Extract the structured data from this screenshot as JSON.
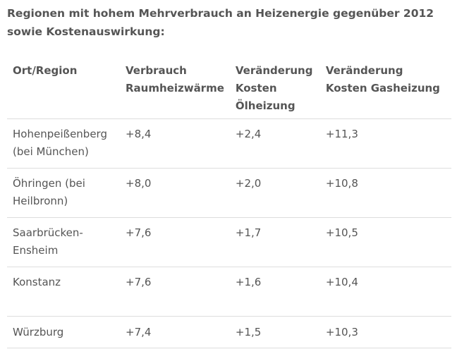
{
  "caption": "Regionen mit hohem Mehrverbrauch an Heizenergie gegenüber 2012 sowie Kostenauswirkung:",
  "table": {
    "headers": [
      "Ort/Region",
      "Verbrauch Raumheizwärme",
      "Veränderung Kosten Ölheizung",
      "Veränderung Kosten Gasheizung"
    ],
    "rows": [
      [
        "Hohenpeißenberg (bei München)",
        "+8,4",
        "+2,4",
        "+11,3"
      ],
      [
        "Öhringen (bei Heilbronn)",
        "+8,0",
        "+2,0",
        "+10,8"
      ],
      [
        "Saarbrücken-Ensheim",
        "+7,6",
        "+1,7",
        "+10,5"
      ],
      [
        "Konstanz",
        "+7,6",
        "+1,6",
        "+10,4"
      ],
      [
        "Würzburg",
        "+7,4",
        "+1,5",
        "+10,3"
      ]
    ]
  }
}
